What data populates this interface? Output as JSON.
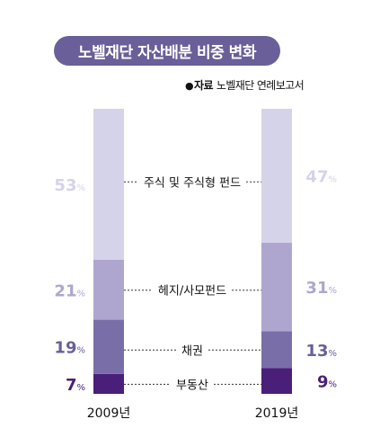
{
  "header": {
    "title": "노벨재단 자산배분 비중 변화",
    "source_bullet": "●",
    "source_label": "자료",
    "source_text": "노벨재단 연례보고서"
  },
  "chart_data": {
    "type": "bar",
    "stacked": true,
    "orientation": "vertical",
    "categories": [
      "2009년",
      "2019년"
    ],
    "unit": "%",
    "series": [
      {
        "name": "부동산",
        "values": [
          7,
          9
        ],
        "color": "#4a1f7a"
      },
      {
        "name": "채권",
        "values": [
          19,
          13
        ],
        "color": "#7a6ea8"
      },
      {
        "name": "헤지/사모펀드",
        "values": [
          21,
          31
        ],
        "color": "#aea6cf"
      },
      {
        "name": "주식 및 주식형 펀드",
        "values": [
          53,
          47
        ],
        "color": "#d5d3e9"
      }
    ],
    "label_colors": {
      "부동산": "#4a1f7a",
      "채권": "#6a5f99",
      "헤지/사모펀드": "#aea6cf",
      "주식 및 주식형 펀드": "#d5d3e9"
    }
  }
}
